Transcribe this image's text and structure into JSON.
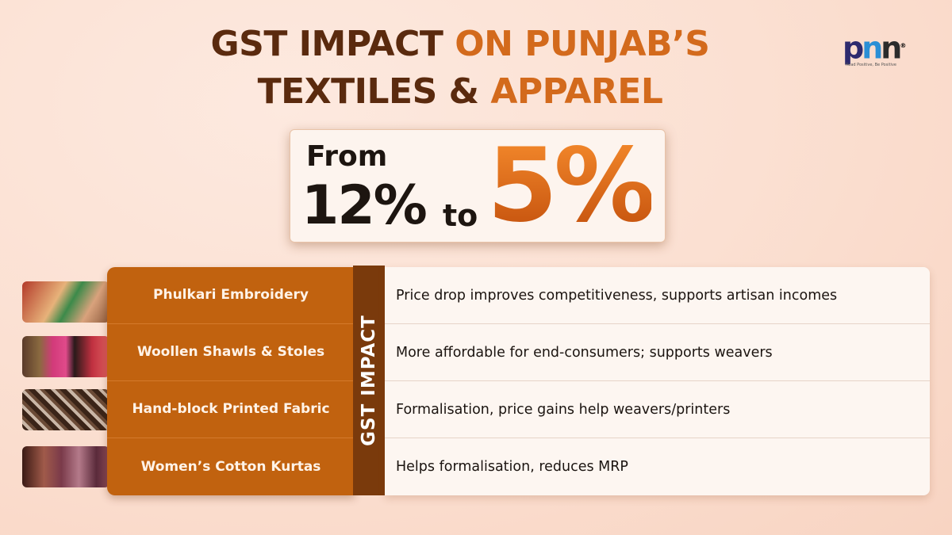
{
  "title": {
    "line1_dark": "GST IMPACT ",
    "line1_accent": "ON PUNJAB’S",
    "line2_dark": "TEXTILES & ",
    "line2_accent": "APPAREL"
  },
  "logo": {
    "text": "pnn",
    "tagline": "Read Positive, Be Positive",
    "colors": [
      "#2d2a6e",
      "#2a8fd6",
      "#2b2b2b"
    ]
  },
  "rate_change": {
    "from_label": "From",
    "old_rate": "12%",
    "to_label": "to",
    "new_rate": "5%"
  },
  "table": {
    "side_label": "GST IMPACT",
    "rows": [
      {
        "item": "Phulkari Embroidery",
        "impact": "Price drop improves competitiveness, supports artisan incomes"
      },
      {
        "item": "Woollen Shawls & Stoles",
        "impact": "More affordable for end-consumers; supports weavers"
      },
      {
        "item": "Hand-block Printed Fabric",
        "impact": "Formalisation, price gains help weavers/printers"
      },
      {
        "item": "Women’s Cotton Kurtas",
        "impact": "Helps formalisation, reduces MRP"
      }
    ]
  },
  "colors": {
    "dark_brown": "#5a2a0e",
    "accent_orange": "#d36a1c",
    "panel_orange": "#c1620f",
    "strip_brown": "#7a3a0c"
  }
}
